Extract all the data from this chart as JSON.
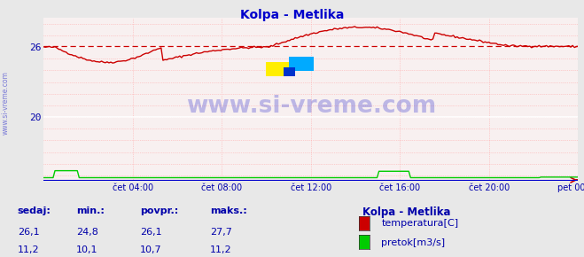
{
  "title": "Kolpa - Metlika",
  "title_color": "#0000cc",
  "bg_color": "#e8e8e8",
  "plot_bg_color": "#f8f0f0",
  "grid_color_major": "#ffffff",
  "grid_color_minor": "#ffaaaa",
  "x_tick_labels": [
    "čet 04:00",
    "čet 08:00",
    "čet 12:00",
    "čet 16:00",
    "čet 20:00",
    "pet 00:00"
  ],
  "x_tick_positions": [
    0.1667,
    0.3333,
    0.5,
    0.6667,
    0.8333,
    1.0
  ],
  "y_ticks": [
    20,
    26
  ],
  "ylim": [
    14.5,
    28.5
  ],
  "xlim": [
    0.0,
    1.0
  ],
  "temp_color": "#cc0000",
  "flow_color": "#00cc00",
  "height_color": "#0000cc",
  "avg_line_color": "#cc0000",
  "avg_value": 26.1,
  "watermark": "www.si-vreme.com",
  "watermark_color": "#3333cc",
  "watermark_alpha": 0.3,
  "legend_title": "Kolpa - Metlika",
  "legend_title_color": "#0000aa",
  "legend_items": [
    {
      "label": "temperatura[C]",
      "color": "#cc0000"
    },
    {
      "label": "pretok[m3/s]",
      "color": "#00cc00"
    }
  ],
  "table_headers": [
    "sedaj:",
    "min.:",
    "povpr.:",
    "maks.:"
  ],
  "table_row1": [
    "26,1",
    "24,8",
    "26,1",
    "27,7"
  ],
  "table_row2": [
    "11,2",
    "10,1",
    "10,7",
    "11,2"
  ],
  "table_color": "#0000aa",
  "ylabel_text": "www.si-vreme.com",
  "ylabel_color": "#3333cc"
}
